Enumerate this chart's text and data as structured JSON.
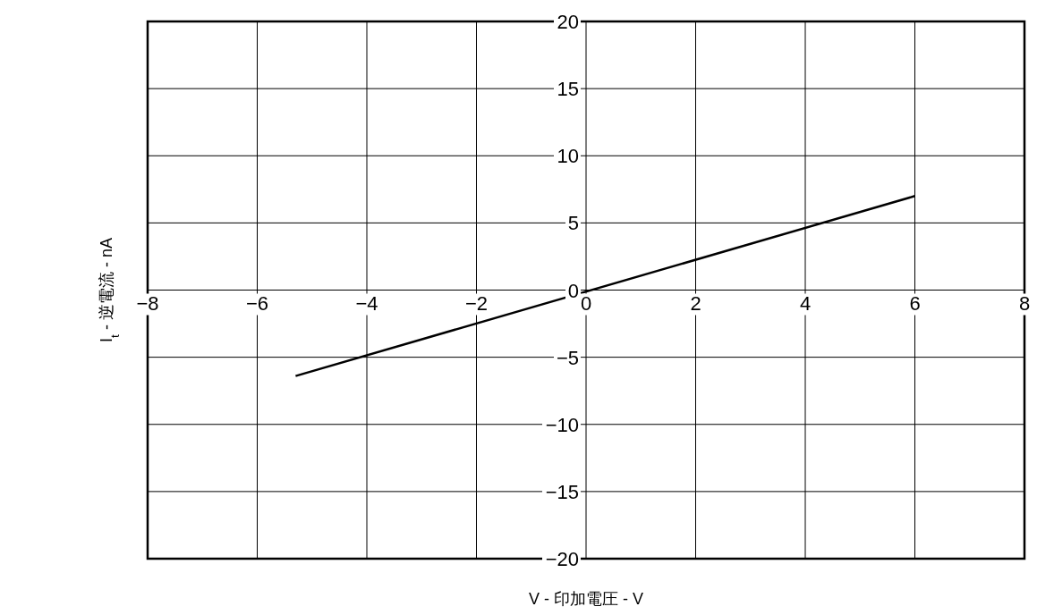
{
  "chart_data": {
    "type": "line",
    "xlabel": "V - 印加電圧 - V",
    "ylabel": "I$_{t}$ - 逆電流 - nA",
    "series": [
      {
        "color": "#000000",
        "x": [
          -5.3,
          6
        ],
        "values": [
          -6.4,
          7
        ]
      }
    ],
    "xlim": [
      -8,
      8
    ],
    "ylim": [
      -20,
      20
    ],
    "xticks": [
      {
        "value": -8,
        "label": "−8"
      },
      {
        "value": -6,
        "label": "−6"
      },
      {
        "value": -4,
        "label": "−4"
      },
      {
        "value": -2,
        "label": "−2"
      },
      0,
      2,
      4,
      6,
      8
    ],
    "yticks": [
      {
        "value": -20,
        "label": "−20"
      },
      {
        "value": -15,
        "label": "−15"
      },
      {
        "value": -10,
        "label": "−10"
      },
      {
        "value": -5,
        "label": "−5"
      },
      0,
      5,
      10,
      15,
      20
    ],
    "grid": true,
    "marker": "none",
    "line_style": "solid"
  }
}
